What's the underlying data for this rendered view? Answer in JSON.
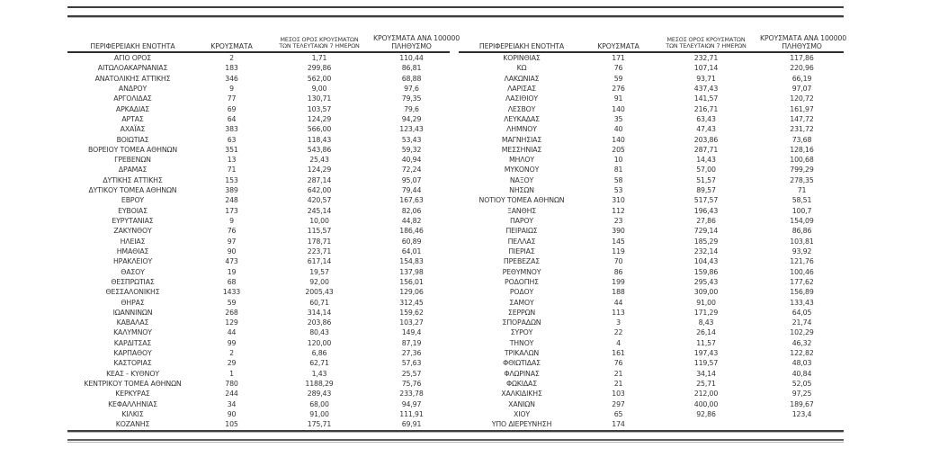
{
  "table": {
    "columns": {
      "region": "ΠΕΡΙΦΕΡΕΙΑΚΗ ΕΝΟΤΗΤΑ",
      "cases": "ΚΡΟΥΣΜΑΤΑ",
      "avg7_line1": "ΜΕΣΟΣ ΟΡΟΣ ΚΡΟΥΣΜΑΤΩΝ",
      "avg7_line2": "ΤΩΝ ΤΕΛΕΥΤΑΙΩΝ 7 ΗΜΕΡΩΝ",
      "per100k_line1": "ΚΡΟΥΣΜΑΤΑ ΑΝΑ 100000",
      "per100k_line2": "ΠΛΗΘΥΣΜΟ"
    },
    "left_rows": [
      {
        "region": "ΑΓΙΟ ΟΡΟΣ",
        "cases": "2",
        "avg7": "1,71",
        "per100k": "110,44"
      },
      {
        "region": "ΑΙΤΩΛΟΑΚΑΡΝΑΝΙΑΣ",
        "cases": "183",
        "avg7": "299,86",
        "per100k": "86,81"
      },
      {
        "region": "ΑΝΑΤΟΛΙΚΗΣ ΑΤΤΙΚΗΣ",
        "cases": "346",
        "avg7": "562,00",
        "per100k": "68,88"
      },
      {
        "region": "ΑΝΔΡΟΥ",
        "cases": "9",
        "avg7": "9,00",
        "per100k": "97,6"
      },
      {
        "region": "ΑΡΓΟΛΙΔΑΣ",
        "cases": "77",
        "avg7": "130,71",
        "per100k": "79,35"
      },
      {
        "region": "ΑΡΚΑΔΙΑΣ",
        "cases": "69",
        "avg7": "103,57",
        "per100k": "79,6"
      },
      {
        "region": "ΑΡΤΑΣ",
        "cases": "64",
        "avg7": "124,29",
        "per100k": "94,29"
      },
      {
        "region": "ΑΧΑΪΑΣ",
        "cases": "383",
        "avg7": "566,00",
        "per100k": "123,43"
      },
      {
        "region": "ΒΟΙΩΤΙΑΣ",
        "cases": "63",
        "avg7": "118,43",
        "per100k": "53,43"
      },
      {
        "region": "ΒΟΡΕΙΟΥ ΤΟΜΕΑ ΑΘΗΝΩΝ",
        "cases": "351",
        "avg7": "543,86",
        "per100k": "59,32"
      },
      {
        "region": "ΓΡΕΒΕΝΩΝ",
        "cases": "13",
        "avg7": "25,43",
        "per100k": "40,94"
      },
      {
        "region": "ΔΡΑΜΑΣ",
        "cases": "71",
        "avg7": "124,29",
        "per100k": "72,24"
      },
      {
        "region": "ΔΥΤΙΚΗΣ ΑΤΤΙΚΗΣ",
        "cases": "153",
        "avg7": "287,14",
        "per100k": "95,07"
      },
      {
        "region": "ΔΥΤΙΚΟΥ ΤΟΜΕΑ ΑΘΗΝΩΝ",
        "cases": "389",
        "avg7": "642,00",
        "per100k": "79,44"
      },
      {
        "region": "ΕΒΡΟΥ",
        "cases": "248",
        "avg7": "420,57",
        "per100k": "167,63"
      },
      {
        "region": "ΕΥΒΟΙΑΣ",
        "cases": "173",
        "avg7": "245,14",
        "per100k": "82,06"
      },
      {
        "region": "ΕΥΡΥΤΑΝΙΑΣ",
        "cases": "9",
        "avg7": "10,00",
        "per100k": "44,82"
      },
      {
        "region": "ΖΑΚΥΝΘΟΥ",
        "cases": "76",
        "avg7": "115,57",
        "per100k": "186,46"
      },
      {
        "region": "ΗΛΕΙΑΣ",
        "cases": "97",
        "avg7": "178,71",
        "per100k": "60,89"
      },
      {
        "region": "ΗΜΑΘΙΑΣ",
        "cases": "90",
        "avg7": "223,71",
        "per100k": "64,01"
      },
      {
        "region": "ΗΡΑΚΛΕΙΟΥ",
        "cases": "473",
        "avg7": "617,14",
        "per100k": "154,83"
      },
      {
        "region": "ΘΑΣΟΥ",
        "cases": "19",
        "avg7": "19,57",
        "per100k": "137,98"
      },
      {
        "region": "ΘΕΣΠΡΩΤΙΑΣ",
        "cases": "68",
        "avg7": "92,00",
        "per100k": "156,01"
      },
      {
        "region": "ΘΕΣΣΑΛΟΝΙΚΗΣ",
        "cases": "1433",
        "avg7": "2005,43",
        "per100k": "129,06"
      },
      {
        "region": "ΘΗΡΑΣ",
        "cases": "59",
        "avg7": "60,71",
        "per100k": "312,45"
      },
      {
        "region": "ΙΩΑΝΝΙΝΩΝ",
        "cases": "268",
        "avg7": "314,14",
        "per100k": "159,62"
      },
      {
        "region": "ΚΑΒΑΛΑΣ",
        "cases": "129",
        "avg7": "203,86",
        "per100k": "103,27"
      },
      {
        "region": "ΚΑΛΥΜΝΟΥ",
        "cases": "44",
        "avg7": "80,43",
        "per100k": "149,4"
      },
      {
        "region": "ΚΑΡΔΙΤΣΑΣ",
        "cases": "99",
        "avg7": "120,00",
        "per100k": "87,19"
      },
      {
        "region": "ΚΑΡΠΑΘΟΥ",
        "cases": "2",
        "avg7": "6,86",
        "per100k": "27,36"
      },
      {
        "region": "ΚΑΣΤΟΡΙΑΣ",
        "cases": "29",
        "avg7": "62,71",
        "per100k": "57,63"
      },
      {
        "region": "ΚΕΑΣ - ΚΥΘΝΟΥ",
        "cases": "1",
        "avg7": "1,43",
        "per100k": "25,57"
      },
      {
        "region": "ΚΕΝΤΡΙΚΟΥ ΤΟΜΕΑ ΑΘΗΝΩΝ",
        "cases": "780",
        "avg7": "1188,29",
        "per100k": "75,76"
      },
      {
        "region": "ΚΕΡΚΥΡΑΣ",
        "cases": "244",
        "avg7": "289,43",
        "per100k": "233,78"
      },
      {
        "region": "ΚΕΦΑΛΛΗΝΙΑΣ",
        "cases": "34",
        "avg7": "68,00",
        "per100k": "94,97"
      },
      {
        "region": "ΚΙΛΚΙΣ",
        "cases": "90",
        "avg7": "91,00",
        "per100k": "111,91"
      },
      {
        "region": "ΚΟΖΑΝΗΣ",
        "cases": "105",
        "avg7": "175,71",
        "per100k": "69,91"
      }
    ],
    "right_rows": [
      {
        "region": "ΚΟΡΙΝΘΙΑΣ",
        "cases": "171",
        "avg7": "232,71",
        "per100k": "117,86"
      },
      {
        "region": "ΚΩ",
        "cases": "76",
        "avg7": "107,14",
        "per100k": "220,96"
      },
      {
        "region": "ΛΑΚΩΝΙΑΣ",
        "cases": "59",
        "avg7": "93,71",
        "per100k": "66,19"
      },
      {
        "region": "ΛΑΡΙΣΑΣ",
        "cases": "276",
        "avg7": "437,43",
        "per100k": "97,07"
      },
      {
        "region": "ΛΑΣΙΘΙΟΥ",
        "cases": "91",
        "avg7": "141,57",
        "per100k": "120,72"
      },
      {
        "region": "ΛΕΣΒΟΥ",
        "cases": "140",
        "avg7": "216,71",
        "per100k": "161,97"
      },
      {
        "region": "ΛΕΥΚΑΔΑΣ",
        "cases": "35",
        "avg7": "63,43",
        "per100k": "147,72"
      },
      {
        "region": "ΛΗΜΝΟΥ",
        "cases": "40",
        "avg7": "47,43",
        "per100k": "231,72"
      },
      {
        "region": "ΜΑΓΝΗΣΙΑΣ",
        "cases": "140",
        "avg7": "203,86",
        "per100k": "73,68"
      },
      {
        "region": "ΜΕΣΣΗΝΙΑΣ",
        "cases": "205",
        "avg7": "287,71",
        "per100k": "128,16"
      },
      {
        "region": "ΜΗΛΟΥ",
        "cases": "10",
        "avg7": "14,43",
        "per100k": "100,68"
      },
      {
        "region": "ΜΥΚΟΝΟΥ",
        "cases": "81",
        "avg7": "57,00",
        "per100k": "799,29"
      },
      {
        "region": "ΝΑΞΟΥ",
        "cases": "58",
        "avg7": "51,57",
        "per100k": "278,35"
      },
      {
        "region": "ΝΗΣΩΝ",
        "cases": "53",
        "avg7": "89,57",
        "per100k": "71"
      },
      {
        "region": "ΝΟΤΙΟΥ ΤΟΜΕΑ ΑΘΗΝΩΝ",
        "cases": "310",
        "avg7": "517,57",
        "per100k": "58,51"
      },
      {
        "region": "ΞΑΝΘΗΣ",
        "cases": "112",
        "avg7": "196,43",
        "per100k": "100,7"
      },
      {
        "region": "ΠΑΡΟΥ",
        "cases": "23",
        "avg7": "27,86",
        "per100k": "154,09"
      },
      {
        "region": "ΠΕΙΡΑΙΩΣ",
        "cases": "390",
        "avg7": "729,14",
        "per100k": "86,86"
      },
      {
        "region": "ΠΕΛΛΑΣ",
        "cases": "145",
        "avg7": "185,29",
        "per100k": "103,81"
      },
      {
        "region": "ΠΙΕΡΙΑΣ",
        "cases": "119",
        "avg7": "232,14",
        "per100k": "93,92"
      },
      {
        "region": "ΠΡΕΒΕΖΑΣ",
        "cases": "70",
        "avg7": "104,43",
        "per100k": "121,76"
      },
      {
        "region": "ΡΕΘΥΜΝΟΥ",
        "cases": "86",
        "avg7": "159,86",
        "per100k": "100,46"
      },
      {
        "region": "ΡΟΔΟΠΗΣ",
        "cases": "199",
        "avg7": "295,43",
        "per100k": "177,62"
      },
      {
        "region": "ΡΟΔΟΥ",
        "cases": "188",
        "avg7": "309,00",
        "per100k": "156,89"
      },
      {
        "region": "ΣΑΜΟΥ",
        "cases": "44",
        "avg7": "91,00",
        "per100k": "133,43"
      },
      {
        "region": "ΣΕΡΡΩΝ",
        "cases": "113",
        "avg7": "171,29",
        "per100k": "64,05"
      },
      {
        "region": "ΣΠΟΡΑΔΩΝ",
        "cases": "3",
        "avg7": "8,43",
        "per100k": "21,74"
      },
      {
        "region": "ΣΥΡΟΥ",
        "cases": "22",
        "avg7": "26,14",
        "per100k": "102,29"
      },
      {
        "region": "ΤΗΝΟΥ",
        "cases": "4",
        "avg7": "11,57",
        "per100k": "46,32"
      },
      {
        "region": "ΤΡΙΚΑΛΩΝ",
        "cases": "161",
        "avg7": "197,43",
        "per100k": "122,82"
      },
      {
        "region": "ΦΘΙΩΤΙΔΑΣ",
        "cases": "76",
        "avg7": "119,57",
        "per100k": "48,03"
      },
      {
        "region": "ΦΛΩΡΙΝΑΣ",
        "cases": "21",
        "avg7": "34,14",
        "per100k": "40,84"
      },
      {
        "region": "ΦΩΚΙΔΑΣ",
        "cases": "21",
        "avg7": "25,71",
        "per100k": "52,05"
      },
      {
        "region": "ΧΑΛΚΙΔΙΚΗΣ",
        "cases": "103",
        "avg7": "212,00",
        "per100k": "97,25"
      },
      {
        "region": "ΧΑΝΙΩΝ",
        "cases": "297",
        "avg7": "400,00",
        "per100k": "189,67"
      },
      {
        "region": "ΧΙΟΥ",
        "cases": "65",
        "avg7": "92,86",
        "per100k": "123,4"
      },
      {
        "region": "ΥΠΟ ΔΙΕΡΕΥΝΗΣΗ",
        "cases": "174",
        "avg7": "",
        "per100k": ""
      }
    ]
  }
}
